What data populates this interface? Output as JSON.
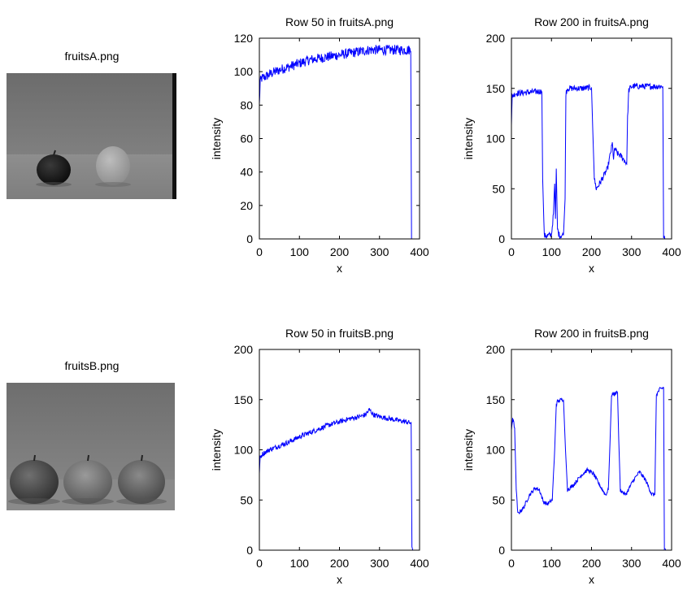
{
  "images": [
    {
      "title": "fruitsA.png"
    },
    {
      "title": "fruitsB.png"
    }
  ],
  "chart_data": [
    {
      "type": "line",
      "title": "Row 50 in fruitsA.png",
      "xlabel": "x",
      "ylabel": "intensity",
      "xlim": [
        0,
        400
      ],
      "ylim": [
        0,
        120
      ],
      "xticks": [
        0,
        100,
        200,
        300,
        400
      ],
      "yticks": [
        0,
        20,
        40,
        60,
        80,
        100,
        120
      ],
      "series": [
        {
          "color": "#0000ff",
          "x": [
            0,
            2,
            6,
            15,
            30,
            50,
            75,
            100,
            125,
            150,
            175,
            200,
            225,
            250,
            275,
            300,
            325,
            350,
            365,
            375,
            378,
            380,
            382
          ],
          "values": [
            80,
            94,
            96,
            97,
            99,
            101,
            103,
            105,
            107,
            108,
            109,
            110,
            111,
            112,
            113,
            113,
            113,
            113,
            113,
            113,
            112,
            1,
            0
          ],
          "noise": 3
        }
      ]
    },
    {
      "type": "line",
      "title": "Row 200 in fruitsA.png",
      "xlabel": "x",
      "ylabel": "intensity",
      "xlim": [
        0,
        400
      ],
      "ylim": [
        0,
        200
      ],
      "xticks": [
        0,
        100,
        200,
        300,
        400
      ],
      "yticks": [
        0,
        50,
        100,
        150,
        200
      ],
      "series": [
        {
          "color": "#0000ff",
          "x": [
            0,
            2,
            10,
            40,
            70,
            76,
            78,
            82,
            100,
            105,
            108,
            110,
            112,
            115,
            118,
            122,
            130,
            134,
            136,
            140,
            160,
            180,
            200,
            203,
            207,
            212,
            220,
            240,
            252,
            255,
            258,
            265,
            275,
            288,
            290,
            293,
            300,
            340,
            378,
            380,
            383
          ],
          "values": [
            115,
            142,
            145,
            146,
            147,
            147,
            60,
            3,
            4,
            25,
            55,
            20,
            70,
            10,
            5,
            3,
            4,
            40,
            145,
            150,
            150,
            150,
            151,
            110,
            60,
            50,
            55,
            70,
            95,
            80,
            90,
            85,
            82,
            75,
            120,
            148,
            152,
            152,
            152,
            2,
            0
          ],
          "noise": 3
        }
      ]
    },
    {
      "type": "line",
      "title": "Row 50 in fruitsB.png",
      "xlabel": "x",
      "ylabel": "intensity",
      "xlim": [
        0,
        400
      ],
      "ylim": [
        0,
        200
      ],
      "xticks": [
        0,
        100,
        200,
        300,
        400
      ],
      "yticks": [
        0,
        50,
        100,
        150,
        200
      ],
      "series": [
        {
          "color": "#0000ff",
          "x": [
            0,
            2,
            8,
            25,
            50,
            75,
            100,
            125,
            150,
            175,
            200,
            225,
            250,
            265,
            275,
            285,
            300,
            325,
            350,
            365,
            375,
            379,
            381,
            383
          ],
          "values": [
            78,
            92,
            96,
            100,
            104,
            108,
            113,
            117,
            121,
            125,
            128,
            131,
            133,
            135,
            140,
            135,
            133,
            131,
            129,
            128,
            127,
            127,
            1,
            0
          ],
          "noise": 2.5
        }
      ]
    },
    {
      "type": "line",
      "title": "Row 200 in fruitsB.png",
      "xlabel": "x",
      "ylabel": "intensity",
      "xlim": [
        0,
        400
      ],
      "ylim": [
        0,
        200
      ],
      "xticks": [
        0,
        100,
        200,
        300,
        400
      ],
      "yticks": [
        0,
        50,
        100,
        150,
        200
      ],
      "series": [
        {
          "color": "#0000ff",
          "x": [
            0,
            3,
            8,
            12,
            16,
            20,
            30,
            45,
            60,
            70,
            80,
            90,
            102,
            108,
            112,
            115,
            125,
            130,
            135,
            140,
            155,
            175,
            190,
            205,
            220,
            235,
            242,
            246,
            250,
            265,
            268,
            272,
            285,
            305,
            320,
            335,
            350,
            358,
            362,
            370,
            380,
            382,
            385
          ],
          "values": [
            120,
            132,
            122,
            60,
            36,
            38,
            42,
            55,
            62,
            60,
            48,
            46,
            50,
            100,
            145,
            148,
            150,
            150,
            100,
            60,
            65,
            75,
            80,
            76,
            65,
            55,
            60,
            105,
            155,
            157,
            110,
            60,
            55,
            70,
            78,
            70,
            56,
            55,
            155,
            160,
            162,
            2,
            0
          ],
          "noise": 2
        }
      ]
    }
  ]
}
